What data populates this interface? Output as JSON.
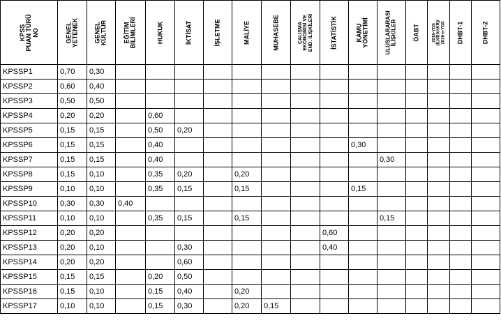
{
  "table": {
    "columns": [
      {
        "lines": [
          "KPSS",
          "PUAN TÜRÜ",
          "NO"
        ],
        "size": "f9"
      },
      {
        "lines": [
          "GENEL",
          "YETENEK"
        ],
        "size": "f9"
      },
      {
        "lines": [
          "GENEL",
          "KÜLTÜR"
        ],
        "size": "f9"
      },
      {
        "lines": [
          "EĞİTİM",
          "BİLİMLERİ"
        ],
        "size": "f9"
      },
      {
        "lines": [
          "HUKUK"
        ],
        "size": "f9"
      },
      {
        "lines": [
          "İKTİSAT"
        ],
        "size": "f9"
      },
      {
        "lines": [
          "İŞLETME"
        ],
        "size": "f9"
      },
      {
        "lines": [
          "MALİYE"
        ],
        "size": "f9"
      },
      {
        "lines": [
          "MUHASEBE"
        ],
        "size": "f9"
      },
      {
        "lines": [
          "ÇALIŞMA",
          "EKONOMİSİ VE",
          "END. İLİŞKİLERİ"
        ],
        "size": "f7"
      },
      {
        "lines": [
          "İSTATİSTİK"
        ],
        "size": "f9"
      },
      {
        "lines": [
          "KAMU",
          "YÖNETİMİ"
        ],
        "size": "f9"
      },
      {
        "lines": [
          "ULUSLARARASI",
          "İLİŞKİLER"
        ],
        "size": "f8"
      },
      {
        "lines": [
          "ÖABT"
        ],
        "size": "f9"
      },
      {
        "lines": [
          "2018-YDS",
          "(İLKBAHAR)/",
          "2018-e-YDS"
        ],
        "size": "f6"
      },
      {
        "lines": [
          "DHBT-1"
        ],
        "size": "f9"
      },
      {
        "lines": [
          "DHBT-2"
        ],
        "size": "f9"
      }
    ],
    "rows": [
      [
        "KPSSP1",
        "0,70",
        "0,30",
        "",
        "",
        "",
        "",
        "",
        "",
        "",
        "",
        "",
        "",
        "",
        "",
        "",
        ""
      ],
      [
        "KPSSP2",
        "0,60",
        "0,40",
        "",
        "",
        "",
        "",
        "",
        "",
        "",
        "",
        "",
        "",
        "",
        "",
        "",
        ""
      ],
      [
        "KPSSP3",
        "0,50",
        "0,50",
        "",
        "",
        "",
        "",
        "",
        "",
        "",
        "",
        "",
        "",
        "",
        "",
        "",
        ""
      ],
      [
        "KPSSP4",
        "0,20",
        "0,20",
        "",
        "0,60",
        "",
        "",
        "",
        "",
        "",
        "",
        "",
        "",
        "",
        "",
        "",
        ""
      ],
      [
        "KPSSP5",
        "0,15",
        "0,15",
        "",
        "0,50",
        "0,20",
        "",
        "",
        "",
        "",
        "",
        "",
        "",
        "",
        "",
        "",
        ""
      ],
      [
        "KPSSP6",
        "0,15",
        "0,15",
        "",
        "0,40",
        "",
        "",
        "",
        "",
        "",
        "",
        "0,30",
        "",
        "",
        "",
        "",
        ""
      ],
      [
        "KPSSP7",
        "0,15",
        "0,15",
        "",
        "0,40",
        "",
        "",
        "",
        "",
        "",
        "",
        "",
        "0,30",
        "",
        "",
        "",
        ""
      ],
      [
        "KPSSP8",
        "0,15",
        "0,10",
        "",
        "0,35",
        "0,20",
        "",
        "0,20",
        "",
        "",
        "",
        "",
        "",
        "",
        "",
        "",
        ""
      ],
      [
        "KPSSP9",
        "0,10",
        "0,10",
        "",
        "0,35",
        "0,15",
        "",
        "0,15",
        "",
        "",
        "",
        "0,15",
        "",
        "",
        "",
        "",
        ""
      ],
      [
        "KPSSP10",
        "0,30",
        "0,30",
        "0,40",
        "",
        "",
        "",
        "",
        "",
        "",
        "",
        "",
        "",
        "",
        "",
        "",
        ""
      ],
      [
        "KPSSP11",
        "0,10",
        "0,10",
        "",
        "0,35",
        "0,15",
        "",
        "0,15",
        "",
        "",
        "",
        "",
        "0,15",
        "",
        "",
        "",
        ""
      ],
      [
        "KPSSP12",
        "0,20",
        "0,20",
        "",
        "",
        "",
        "",
        "",
        "",
        "",
        "0,60",
        "",
        "",
        "",
        "",
        "",
        ""
      ],
      [
        "KPSSP13",
        "0,20",
        "0,10",
        "",
        "",
        "0,30",
        "",
        "",
        "",
        "",
        "0,40",
        "",
        "",
        "",
        "",
        "",
        ""
      ],
      [
        "KPSSP14",
        "0,20",
        "0,20",
        "",
        "",
        "0,60",
        "",
        "",
        "",
        "",
        "",
        "",
        "",
        "",
        "",
        "",
        ""
      ],
      [
        "KPSSP15",
        "0,15",
        "0,15",
        "",
        "0,20",
        "0,50",
        "",
        "",
        "",
        "",
        "",
        "",
        "",
        "",
        "",
        "",
        ""
      ],
      [
        "KPSSP16",
        "0,15",
        "0,10",
        "",
        "0,15",
        "0,40",
        "",
        "0,20",
        "",
        "",
        "",
        "",
        "",
        "",
        "",
        "",
        ""
      ],
      [
        "KPSSP17",
        "0,10",
        "0,10",
        "",
        "0,15",
        "0,30",
        "",
        "0,20",
        "0,15",
        "",
        "",
        "",
        "",
        "",
        "",
        "",
        ""
      ]
    ]
  }
}
